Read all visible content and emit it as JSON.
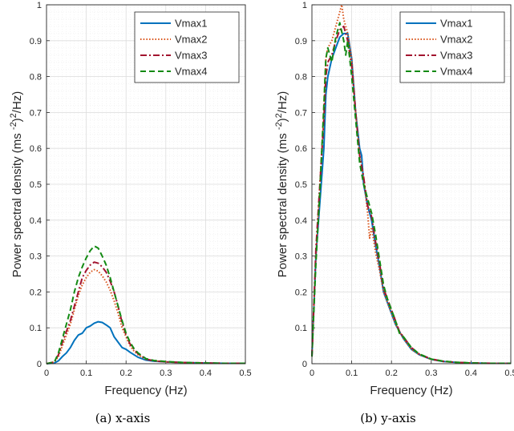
{
  "colors": {
    "Vmax1": "#0072BD",
    "Vmax2": "#D95319",
    "Vmax3": "#A2142F",
    "Vmax4": "#138A13",
    "axis": "#262626",
    "grid": "#dcdcdc",
    "minor_grid": "#ededed"
  },
  "chart_data": [
    {
      "type": "line",
      "caption": "(a) x-axis",
      "xlabel": "Frequency (Hz)",
      "ylabel": "Power spectral density (ms ^-2)^2/Hz",
      "ylabel_parts": {
        "pre": "Power spectral density (ms",
        "sup1": "-2",
        "mid": ")",
        "sup2": "2",
        "post": "/Hz)"
      },
      "xlim": [
        0,
        0.5
      ],
      "ylim": [
        0,
        1
      ],
      "xticks": [
        "0",
        "0.1",
        "0.2",
        "0.3",
        "0.4",
        "0.5"
      ],
      "yticks": [
        "0",
        "0.1",
        "0.2",
        "0.3",
        "0.4",
        "0.5",
        "0.6",
        "0.7",
        "0.8",
        "0.9",
        "1"
      ],
      "grid": true,
      "minor_grid": true,
      "legend_position": "top-right",
      "series": [
        {
          "name": "Vmax1",
          "style": "solid",
          "x": [
            0,
            0.02,
            0.03,
            0.04,
            0.05,
            0.06,
            0.07,
            0.08,
            0.09,
            0.1,
            0.11,
            0.12,
            0.13,
            0.14,
            0.15,
            0.16,
            0.17,
            0.18,
            0.19,
            0.2,
            0.21,
            0.22,
            0.23,
            0.25,
            0.27,
            0.3,
            0.35,
            0.4,
            0.45,
            0.5
          ],
          "y": [
            0,
            0.002,
            0.008,
            0.02,
            0.03,
            0.045,
            0.065,
            0.08,
            0.085,
            0.1,
            0.105,
            0.113,
            0.117,
            0.115,
            0.108,
            0.1,
            0.075,
            0.06,
            0.045,
            0.04,
            0.032,
            0.025,
            0.018,
            0.01,
            0.007,
            0.005,
            0.003,
            0.002,
            0.001,
            0.001
          ]
        },
        {
          "name": "Vmax2",
          "style": "dotted",
          "x": [
            0,
            0.02,
            0.03,
            0.04,
            0.05,
            0.06,
            0.07,
            0.08,
            0.09,
            0.1,
            0.11,
            0.12,
            0.13,
            0.14,
            0.15,
            0.16,
            0.17,
            0.18,
            0.19,
            0.2,
            0.21,
            0.22,
            0.23,
            0.25,
            0.27,
            0.3,
            0.35,
            0.4,
            0.45,
            0.5
          ],
          "y": [
            0,
            0.005,
            0.02,
            0.05,
            0.08,
            0.11,
            0.15,
            0.19,
            0.22,
            0.24,
            0.255,
            0.262,
            0.258,
            0.245,
            0.228,
            0.205,
            0.175,
            0.14,
            0.1,
            0.075,
            0.05,
            0.035,
            0.025,
            0.012,
            0.008,
            0.005,
            0.003,
            0.002,
            0.001,
            0.001
          ]
        },
        {
          "name": "Vmax3",
          "style": "dashdot",
          "x": [
            0,
            0.02,
            0.03,
            0.04,
            0.05,
            0.06,
            0.07,
            0.08,
            0.09,
            0.1,
            0.11,
            0.12,
            0.13,
            0.14,
            0.15,
            0.16,
            0.17,
            0.18,
            0.19,
            0.2,
            0.21,
            0.22,
            0.23,
            0.25,
            0.27,
            0.3,
            0.35,
            0.4,
            0.45,
            0.5
          ],
          "y": [
            0,
            0.005,
            0.025,
            0.06,
            0.09,
            0.12,
            0.16,
            0.2,
            0.24,
            0.26,
            0.275,
            0.283,
            0.28,
            0.27,
            0.255,
            0.23,
            0.2,
            0.16,
            0.115,
            0.08,
            0.055,
            0.04,
            0.028,
            0.013,
            0.008,
            0.005,
            0.003,
            0.002,
            0.001,
            0.001
          ]
        },
        {
          "name": "Vmax4",
          "style": "dashed",
          "x": [
            0,
            0.02,
            0.03,
            0.04,
            0.05,
            0.06,
            0.07,
            0.08,
            0.09,
            0.1,
            0.11,
            0.12,
            0.13,
            0.14,
            0.15,
            0.16,
            0.17,
            0.18,
            0.19,
            0.2,
            0.21,
            0.22,
            0.23,
            0.25,
            0.27,
            0.3,
            0.35,
            0.4,
            0.45,
            0.5
          ],
          "y": [
            0,
            0.005,
            0.03,
            0.07,
            0.11,
            0.15,
            0.2,
            0.24,
            0.27,
            0.295,
            0.315,
            0.328,
            0.322,
            0.3,
            0.275,
            0.24,
            0.2,
            0.16,
            0.12,
            0.085,
            0.06,
            0.042,
            0.03,
            0.014,
            0.009,
            0.006,
            0.003,
            0.002,
            0.001,
            0.001
          ]
        }
      ]
    },
    {
      "type": "line",
      "caption": "(b) y-axis",
      "xlabel": "Frequency (Hz)",
      "ylabel": "Power spectral density (ms ^-2)^2/Hz",
      "ylabel_parts": {
        "pre": "Power spectral density (ms",
        "sup1": "-2",
        "mid": ")",
        "sup2": "2",
        "post": "/Hz)"
      },
      "xlim": [
        0,
        0.5
      ],
      "ylim": [
        0,
        1
      ],
      "xticks": [
        "0",
        "0.1",
        "0.2",
        "0.3",
        "0.4",
        "0.5"
      ],
      "yticks": [
        "0",
        "0.1",
        "0.2",
        "0.3",
        "0.4",
        "0.5",
        "0.6",
        "0.7",
        "0.8",
        "0.9",
        "1"
      ],
      "grid": true,
      "minor_grid": true,
      "legend_position": "top-right",
      "series": [
        {
          "name": "Vmax1",
          "style": "solid",
          "x": [
            0,
            0.01,
            0.02,
            0.03,
            0.035,
            0.04,
            0.05,
            0.06,
            0.07,
            0.08,
            0.09,
            0.1,
            0.11,
            0.12,
            0.125,
            0.13,
            0.14,
            0.15,
            0.16,
            0.17,
            0.18,
            0.19,
            0.2,
            0.21,
            0.22,
            0.23,
            0.25,
            0.27,
            0.3,
            0.33,
            0.36,
            0.4,
            0.45,
            0.5
          ],
          "y": [
            0.02,
            0.3,
            0.45,
            0.6,
            0.75,
            0.8,
            0.85,
            0.88,
            0.91,
            0.92,
            0.92,
            0.85,
            0.7,
            0.6,
            0.58,
            0.5,
            0.44,
            0.4,
            0.33,
            0.27,
            0.2,
            0.17,
            0.14,
            0.11,
            0.09,
            0.07,
            0.04,
            0.025,
            0.012,
            0.006,
            0.004,
            0.002,
            0.001,
            0.001
          ]
        },
        {
          "name": "Vmax2",
          "style": "dotted",
          "x": [
            0,
            0.01,
            0.02,
            0.03,
            0.035,
            0.04,
            0.05,
            0.06,
            0.07,
            0.075,
            0.08,
            0.09,
            0.1,
            0.11,
            0.12,
            0.13,
            0.14,
            0.145,
            0.15,
            0.16,
            0.17,
            0.18,
            0.19,
            0.2,
            0.21,
            0.22,
            0.23,
            0.25,
            0.27,
            0.3,
            0.33,
            0.36,
            0.4,
            0.45,
            0.5
          ],
          "y": [
            0.02,
            0.3,
            0.5,
            0.7,
            0.85,
            0.88,
            0.9,
            0.94,
            0.98,
            1.0,
            0.96,
            0.92,
            0.85,
            0.7,
            0.58,
            0.52,
            0.42,
            0.35,
            0.38,
            0.31,
            0.26,
            0.2,
            0.17,
            0.14,
            0.11,
            0.09,
            0.07,
            0.04,
            0.025,
            0.012,
            0.006,
            0.004,
            0.002,
            0.001,
            0.001
          ]
        },
        {
          "name": "Vmax3",
          "style": "dashdot",
          "x": [
            0,
            0.01,
            0.02,
            0.03,
            0.035,
            0.04,
            0.05,
            0.06,
            0.07,
            0.08,
            0.09,
            0.1,
            0.11,
            0.12,
            0.13,
            0.14,
            0.15,
            0.16,
            0.17,
            0.18,
            0.19,
            0.2,
            0.21,
            0.22,
            0.23,
            0.25,
            0.27,
            0.3,
            0.33,
            0.36,
            0.4,
            0.45,
            0.5
          ],
          "y": [
            0.02,
            0.32,
            0.5,
            0.68,
            0.8,
            0.84,
            0.86,
            0.9,
            0.93,
            0.94,
            0.9,
            0.83,
            0.7,
            0.58,
            0.52,
            0.44,
            0.41,
            0.34,
            0.28,
            0.21,
            0.18,
            0.15,
            0.12,
            0.09,
            0.075,
            0.045,
            0.027,
            0.013,
            0.007,
            0.004,
            0.002,
            0.001,
            0.001
          ]
        },
        {
          "name": "Vmax4",
          "style": "dashed",
          "x": [
            0,
            0.01,
            0.02,
            0.03,
            0.035,
            0.04,
            0.05,
            0.06,
            0.07,
            0.08,
            0.085,
            0.09,
            0.1,
            0.11,
            0.12,
            0.13,
            0.14,
            0.15,
            0.16,
            0.17,
            0.18,
            0.19,
            0.2,
            0.21,
            0.22,
            0.23,
            0.25,
            0.27,
            0.3,
            0.33,
            0.36,
            0.4,
            0.45,
            0.5
          ],
          "y": [
            0.02,
            0.28,
            0.48,
            0.72,
            0.85,
            0.88,
            0.84,
            0.91,
            0.95,
            0.9,
            0.86,
            0.9,
            0.8,
            0.68,
            0.56,
            0.5,
            0.46,
            0.42,
            0.36,
            0.29,
            0.22,
            0.18,
            0.15,
            0.12,
            0.085,
            0.075,
            0.045,
            0.027,
            0.013,
            0.007,
            0.004,
            0.002,
            0.001,
            0.001
          ]
        }
      ]
    }
  ]
}
